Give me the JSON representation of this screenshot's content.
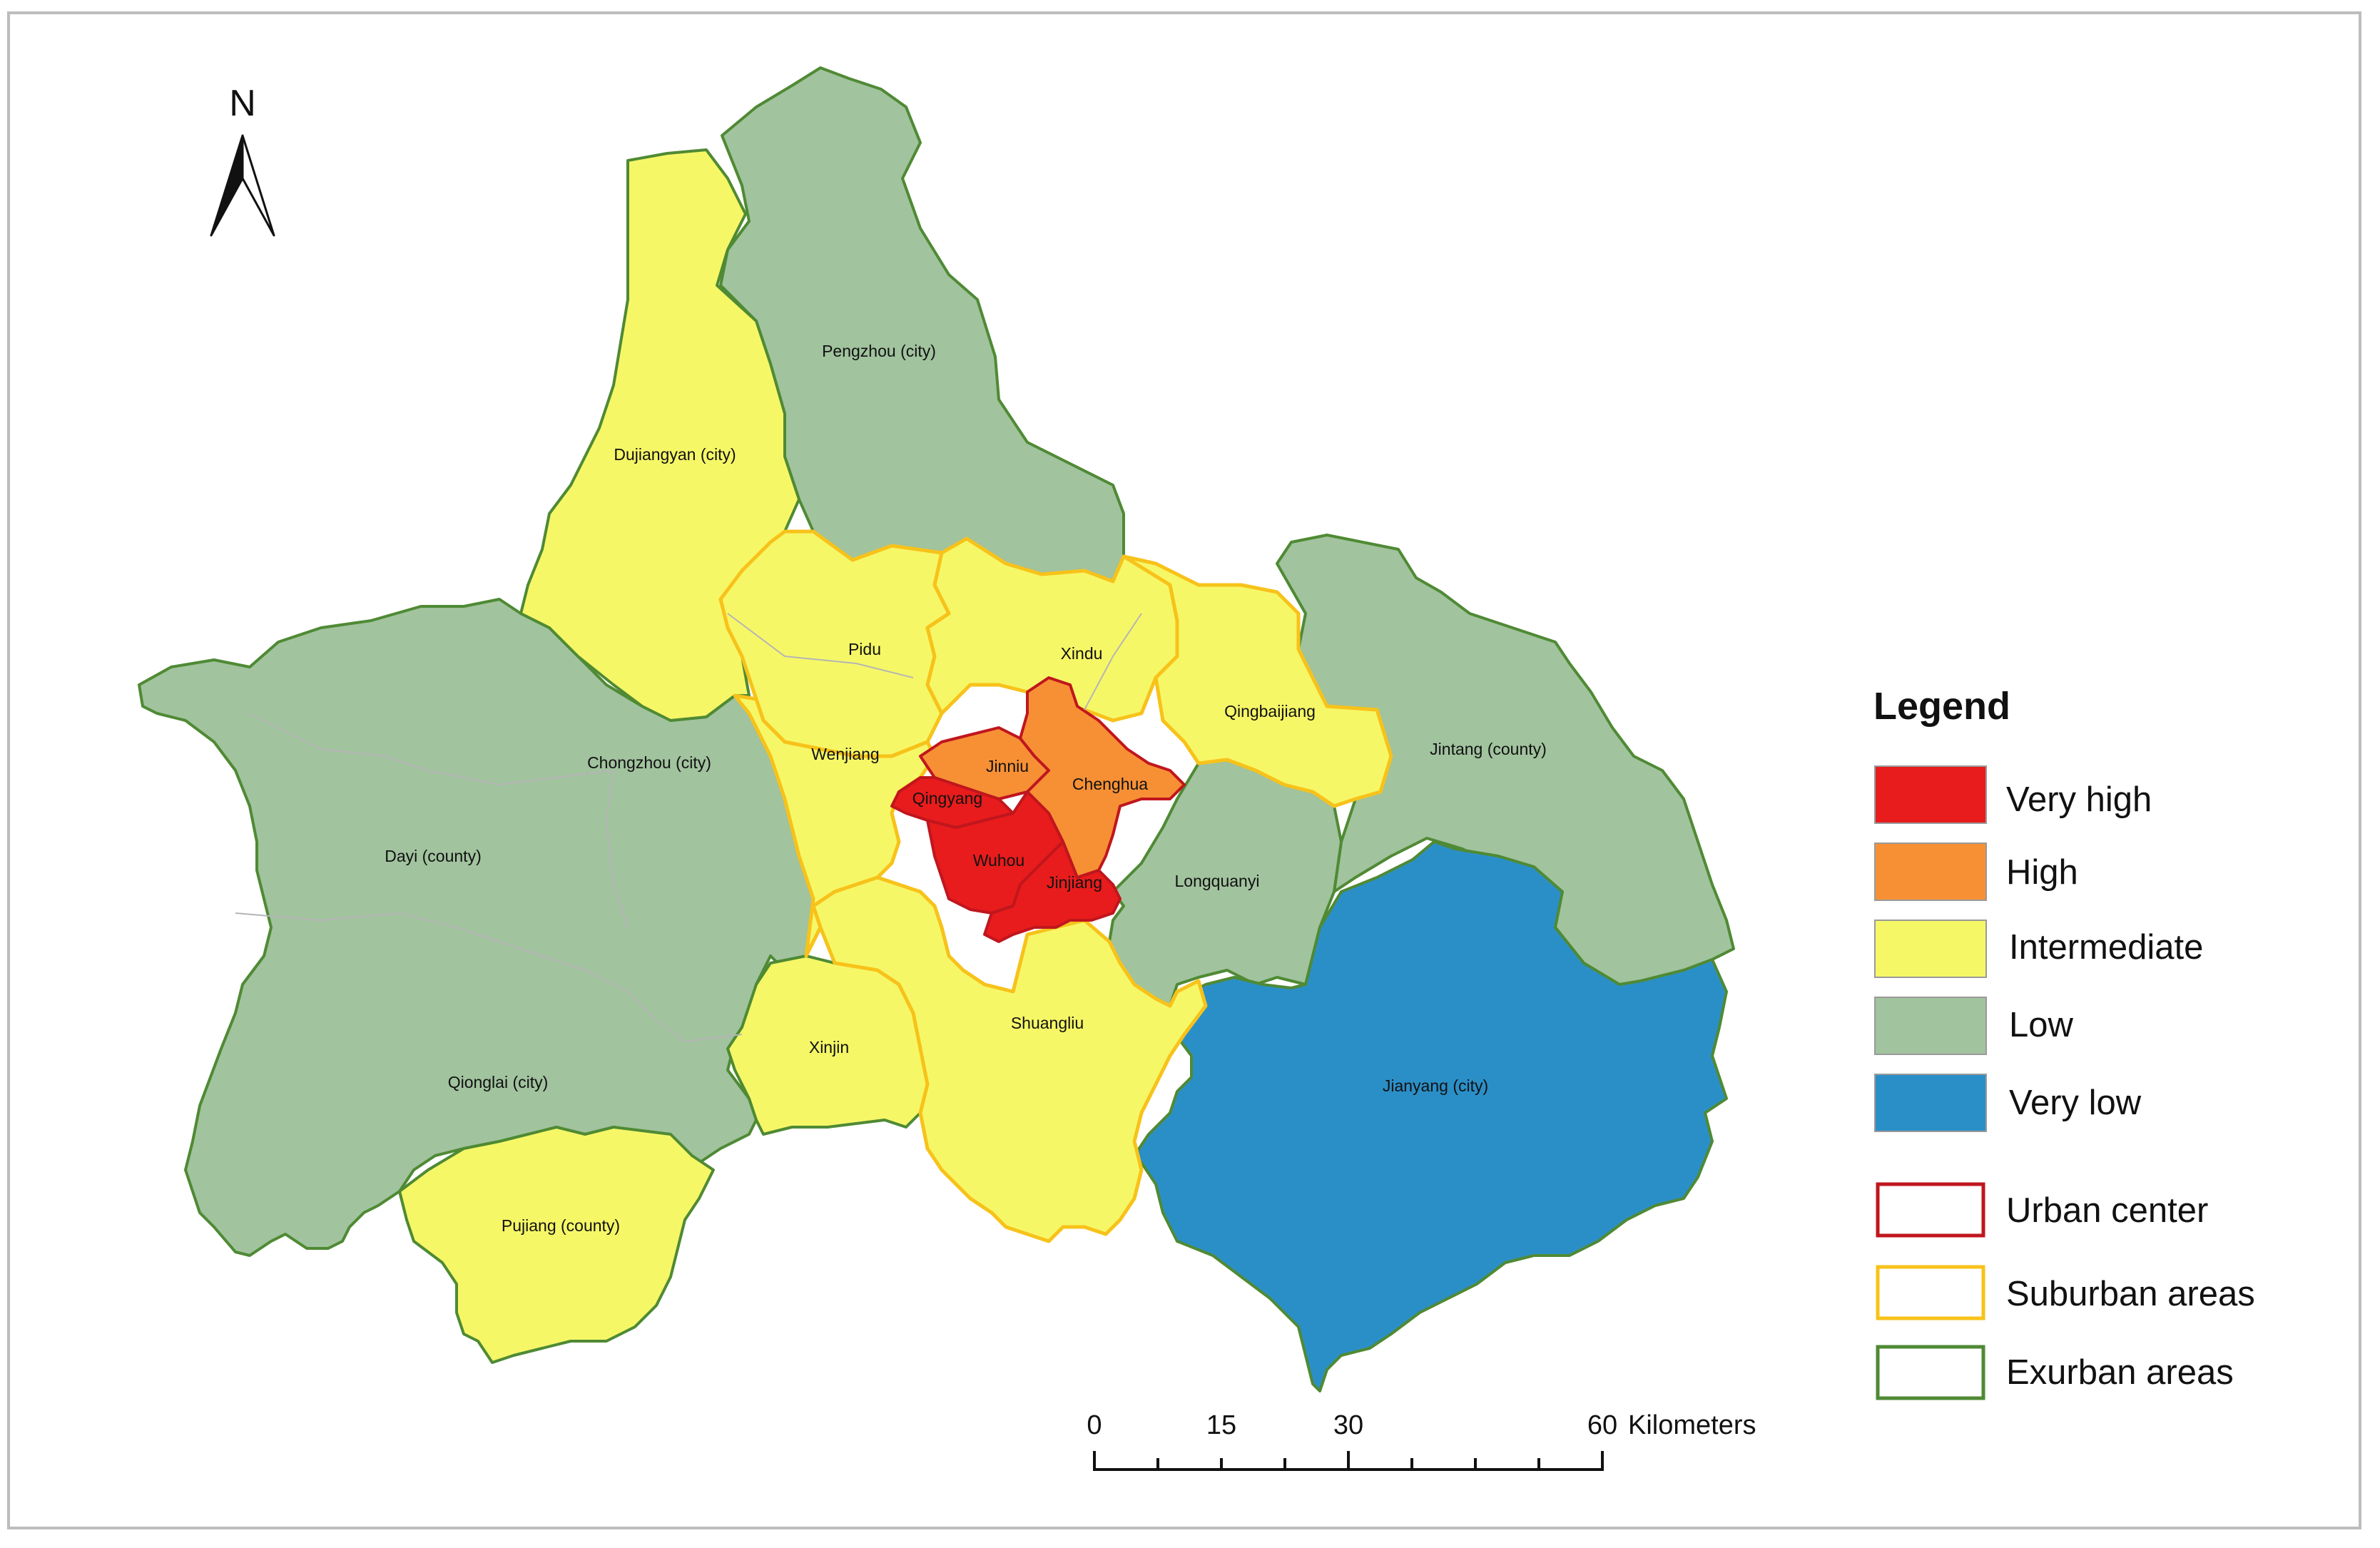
{
  "legend": {
    "title": "Legend",
    "classes": [
      {
        "label": "Very high",
        "color": "#e81c1c"
      },
      {
        "label": "High",
        "color": "#f79035"
      },
      {
        "label": "Intermediate",
        "color": "#f6f767"
      },
      {
        "label": "Low",
        "color": "#a1c39e"
      },
      {
        "label": "Very low",
        "color": "#2b8fc7"
      }
    ],
    "zones": [
      {
        "label": "Urban center",
        "color": "#c0161e"
      },
      {
        "label": "Suburban areas",
        "color": "#f7c21a"
      },
      {
        "label": "Exurban areas",
        "color": "#4f8a34"
      }
    ]
  },
  "north_arrow": {
    "label": "N"
  },
  "scale_bar": {
    "ticks": [
      "0",
      "15",
      "30",
      "60"
    ],
    "unit": "Kilometers"
  },
  "districts": {
    "pengzhou": "Pengzhou (city)",
    "dujiangyan": "Dujiangyan (city)",
    "pidu": "Pidu",
    "xindu": "Xindu",
    "qingbaijiang": "Qingbaijiang",
    "jintang": "Jintang (county)",
    "chongzhou": "Chongzhou (city)",
    "wenjiang": "Wenjiang",
    "jinniu": "Jinniu",
    "chenghua": "Chenghua",
    "qingyang": "Qingyang",
    "dayi": "Dayi (county)",
    "wuhou": "Wuhou",
    "jinjiang": "Jinjiang",
    "longquanyi": "Longquanyi",
    "shuangliu": "Shuangliu",
    "xinjin": "Xinjin",
    "qionglai": "Qionglai (city)",
    "jianyang": "Jianyang (city)",
    "pujiang": "Pujiang (county)"
  }
}
